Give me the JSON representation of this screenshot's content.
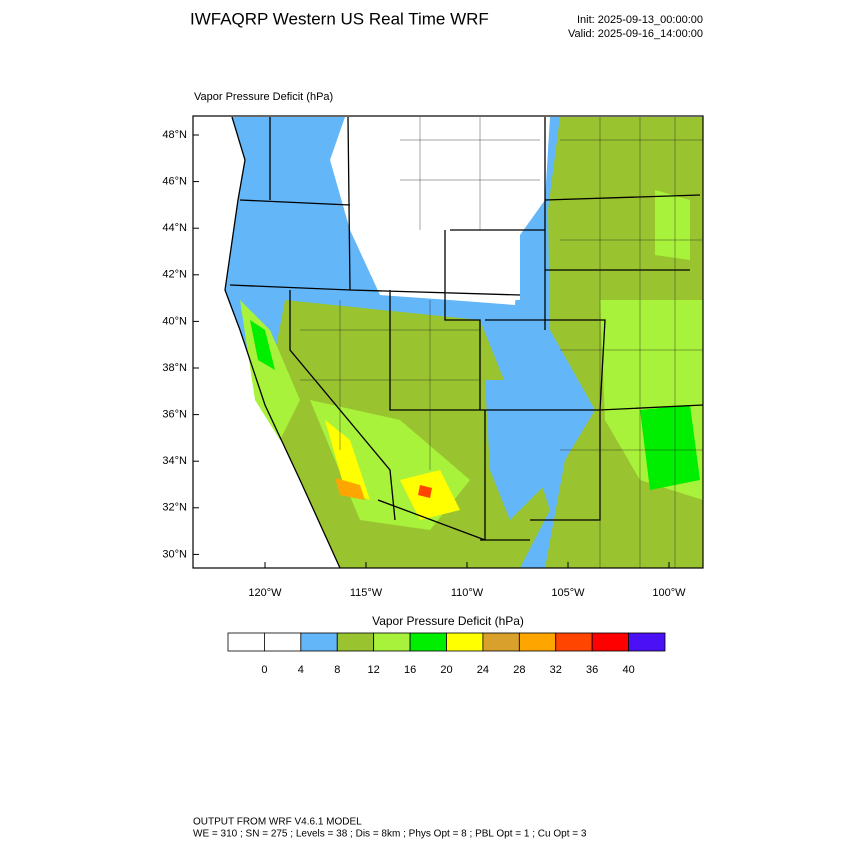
{
  "header": {
    "title": "IWFAQRP Western US Real Time WRF",
    "init": "Init: 2025-09-13_00:00:00",
    "valid": "Valid: 2025-09-16_14:00:00"
  },
  "map": {
    "title": "Vapor Pressure Deficit   (hPa)",
    "lat_labels": [
      "48°N",
      "46°N",
      "44°N",
      "42°N",
      "40°N",
      "38°N",
      "36°N",
      "34°N",
      "32°N",
      "30°N"
    ],
    "lon_labels": [
      "120°W",
      "115°W",
      "110°W",
      "105°W",
      "100°W"
    ]
  },
  "colorbar": {
    "title": "Vapor Pressure Deficit  (hPa)",
    "levels": [
      0,
      4,
      8,
      12,
      16,
      20,
      24,
      28,
      32,
      36,
      40
    ],
    "colors": [
      "#ffffff",
      "#ffffff",
      "#63b6f8",
      "#9ac42f",
      "#a8f23c",
      "#00ef00",
      "#ffff00",
      "#d9a02b",
      "#ffa500",
      "#ff4500",
      "#ff0000",
      "#4b10f5"
    ]
  },
  "footer": {
    "line1": "OUTPUT FROM WRF V4.6.1 MODEL",
    "line2": "WE = 310 ; SN = 275 ; Levels = 38 ; Dis = 8km ; Phys Opt = 8 ; PBL Opt = 1 ; Cu Opt = 3"
  }
}
